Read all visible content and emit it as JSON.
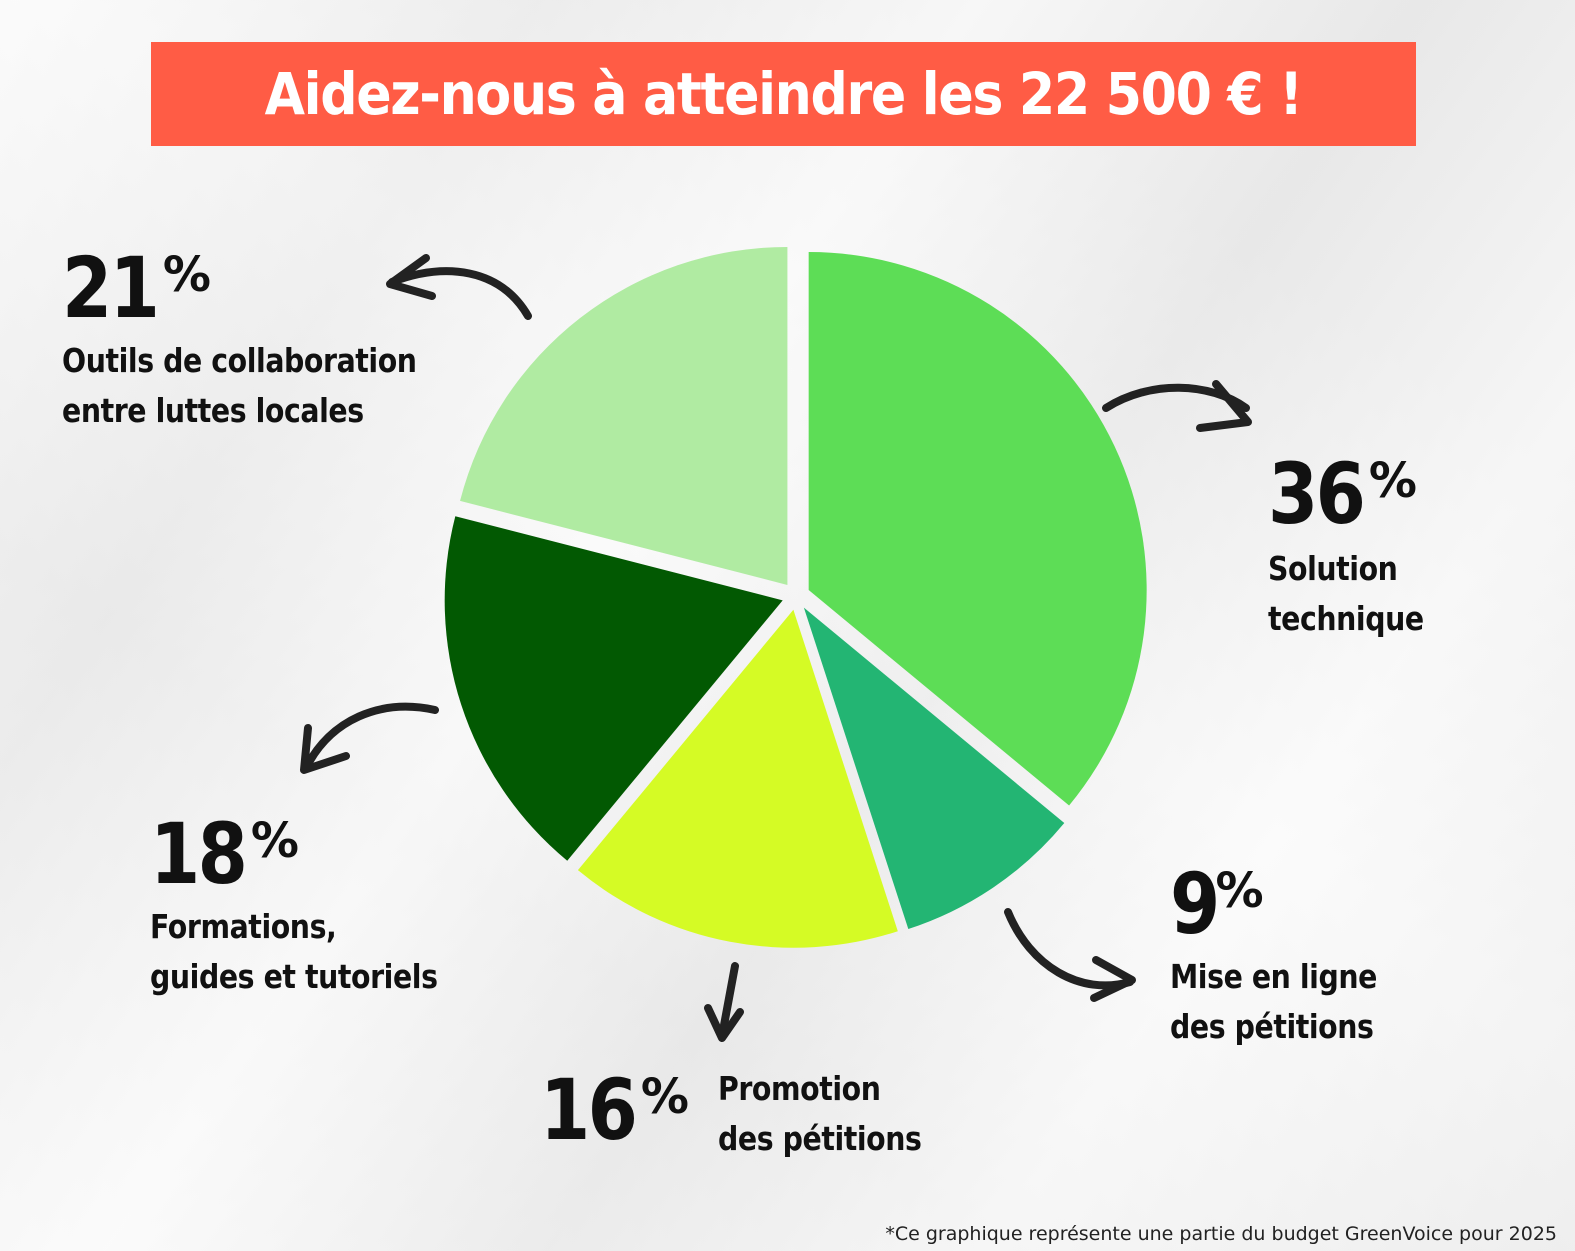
{
  "title": "Aidez-nous à atteindre les 22 500 € !",
  "footnote": "*Ce graphique représente une partie du budget GreenVoice pour 2025",
  "colors": {
    "banner": "#ff5c45",
    "solution_technique": "#5ddd56",
    "mise_en_ligne": "#23b573",
    "promotion": "#d5fb25",
    "formations": "#025902",
    "outils": "#b0eba2"
  },
  "chart_data": {
    "type": "pie",
    "start_angle_deg": 0,
    "direction": "clockwise",
    "slices": [
      {
        "label": "Solution technique",
        "lines": [
          "Solution",
          "technique"
        ],
        "value": 36,
        "value_label": "36",
        "color": "#5ddd56"
      },
      {
        "label": "Mise en ligne des pétitions",
        "lines": [
          "Mise en ligne",
          "des pétitions"
        ],
        "value": 9,
        "value_label": "9",
        "color": "#23b573"
      },
      {
        "label": "Promotion des pétitions",
        "lines": [
          "Promotion",
          "des pétitions"
        ],
        "value": 16,
        "value_label": "16",
        "color": "#d5fb25"
      },
      {
        "label": "Formations, guides et tutoriels",
        "lines": [
          "Formations,",
          "guides et tutoriels"
        ],
        "value": 18,
        "value_label": "18",
        "color": "#025902"
      },
      {
        "label": "Outils de collaboration entre luttes locales",
        "lines": [
          "Outils de collaboration",
          "entre luttes locales"
        ],
        "value": 21,
        "value_label": "21",
        "color": "#b0eba2"
      }
    ],
    "percent_sign": "%"
  }
}
